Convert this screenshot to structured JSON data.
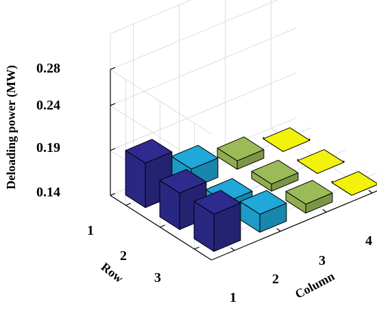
{
  "chart_data": {
    "type": "bar3d",
    "title": "",
    "zlabel": "Deloading power (MW)",
    "xlabel": "Column",
    "ylabel": "Row",
    "column_ticks": [
      "1",
      "2",
      "3",
      "4"
    ],
    "row_ticks": [
      "1",
      "2",
      "3"
    ],
    "z_ticks": [
      "0.14",
      "0.19",
      "0.24",
      "0.28"
    ],
    "zlim": [
      0.14,
      0.28
    ],
    "grid": true,
    "colors": {
      "column_1": "#2e2a8e",
      "column_2": "#1fa8d8",
      "column_3": "#9bbb59",
      "column_4": "#f2f20a"
    },
    "values": [
      [
        0.1895,
        0.1615,
        0.1495,
        0.1385
      ],
      [
        0.1805,
        0.149,
        0.148,
        0.1385
      ],
      [
        0.1815,
        0.16,
        0.15,
        0.1385
      ]
    ]
  }
}
